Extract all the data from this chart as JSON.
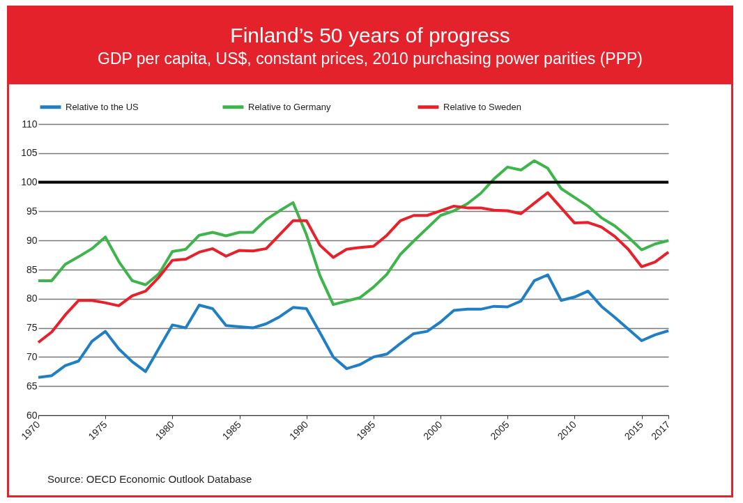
{
  "chart_data": {
    "type": "line",
    "title": "Finland’s 50 years of progress",
    "subtitle": "GDP per capita, US$, constant prices, 2010 purchasing power parities (PPP)",
    "x": [
      1970,
      1971,
      1972,
      1973,
      1974,
      1975,
      1976,
      1977,
      1978,
      1979,
      1980,
      1981,
      1982,
      1983,
      1984,
      1985,
      1986,
      1987,
      1988,
      1989,
      1990,
      1991,
      1992,
      1993,
      1994,
      1995,
      1996,
      1997,
      1998,
      1999,
      2000,
      2001,
      2002,
      2003,
      2004,
      2005,
      2006,
      2007,
      2008,
      2009,
      2010,
      2011,
      2012,
      2013,
      2014,
      2015,
      2016,
      2017
    ],
    "series": [
      {
        "name": "Relative to the US",
        "color": "#1f7fc4",
        "values": [
          66.5,
          66.8,
          68.5,
          69.3,
          72.7,
          74.4,
          71.4,
          69.2,
          67.5,
          71.5,
          75.5,
          75,
          78.9,
          78.3,
          75.4,
          75.2,
          75,
          75.7,
          76.9,
          78.5,
          78.3,
          74.2,
          70,
          68,
          68.7,
          70,
          70.5,
          72.3,
          74,
          74.4,
          76,
          78,
          78.2,
          78.2,
          78.7,
          78.6,
          79.6,
          83.1,
          84.1,
          79.7,
          80.3,
          81.3,
          78.7,
          76.8,
          74.8,
          72.8,
          73.8,
          74.5
        ]
      },
      {
        "name": "Relative to  Germany",
        "color": "#3db54a",
        "values": [
          83.1,
          83.1,
          85.9,
          87.2,
          88.6,
          90.6,
          86.4,
          83.1,
          82.4,
          84.3,
          88.1,
          88.5,
          90.9,
          91.4,
          90.8,
          91.4,
          91.4,
          93.6,
          95.1,
          96.5,
          91,
          84,
          79,
          79.6,
          80.2,
          82,
          84.2,
          87.6,
          89.9,
          92.1,
          94.3,
          95.1,
          96.3,
          98.1,
          100.6,
          102.6,
          102.1,
          103.7,
          102.4,
          98.9,
          97.4,
          95.9,
          93.9,
          92.5,
          90.6,
          88.4,
          89.4,
          90
        ]
      },
      {
        "name": "Relative to Sweden",
        "color": "#e8202a",
        "values": [
          72.5,
          74.3,
          77.2,
          79.7,
          79.7,
          79.3,
          78.8,
          80.5,
          81.3,
          83.7,
          86.6,
          86.8,
          88,
          88.6,
          87.3,
          88.3,
          88.2,
          88.6,
          91,
          93.4,
          93.4,
          89.2,
          87.1,
          88.5,
          88.8,
          89,
          90.9,
          93.4,
          94.3,
          94.3,
          95.1,
          95.9,
          95.6,
          95.6,
          95.2,
          95.1,
          94.6,
          96.4,
          98.2,
          95.6,
          93,
          93.1,
          92.3,
          90.7,
          88.5,
          85.5,
          86.3,
          88
        ]
      }
    ],
    "xlim": [
      1970,
      2017
    ],
    "xticks": [
      1970,
      1975,
      1980,
      1985,
      1990,
      1995,
      2000,
      2005,
      2010,
      2015,
      2017
    ],
    "ylim": [
      60,
      110
    ],
    "yticks": [
      60,
      65,
      70,
      75,
      80,
      85,
      90,
      95,
      100,
      105,
      110
    ],
    "ref_lines": [
      {
        "axis": "y",
        "value": 100,
        "color": "#000000"
      }
    ],
    "grid": "y",
    "legend": "top",
    "annotations": [
      "Source: OECD Economic Outlook Database"
    ]
  }
}
